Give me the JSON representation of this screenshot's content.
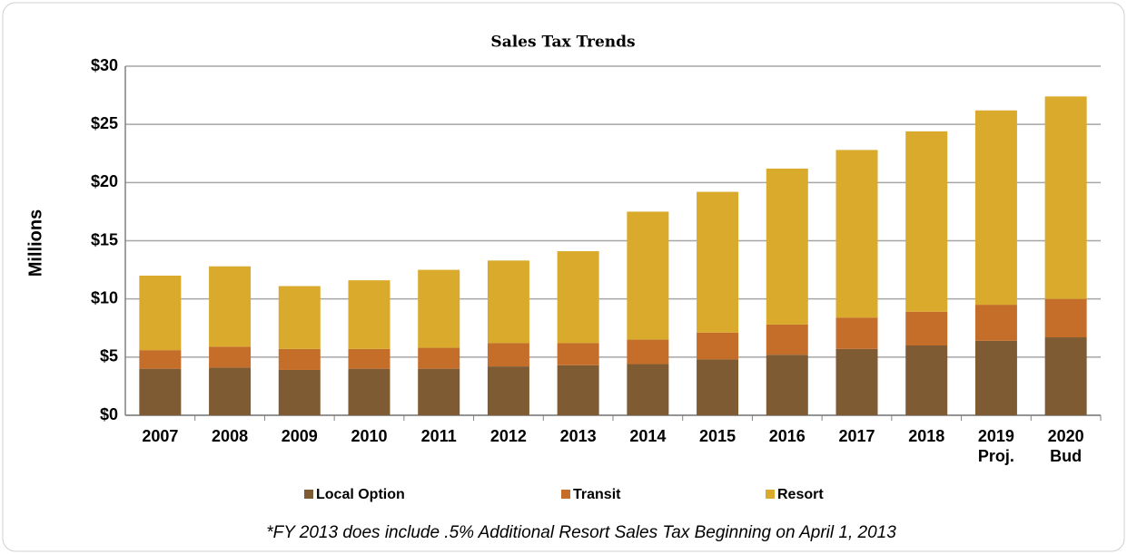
{
  "chart_data": {
    "type": "stacked_bar",
    "title": "Sales Tax Trends",
    "y_label": "Millions",
    "note": "*FY 2013 does include .5% Additional Resort  Sales Tax Beginning on April 1, 2013",
    "categories": [
      "2007",
      "2008",
      "2009",
      "2010",
      "2011",
      "2012",
      "2013",
      "2014",
      "2015",
      "2016",
      "2017",
      "2018",
      [
        "2019",
        "Proj."
      ],
      [
        "2020",
        "Bud"
      ]
    ],
    "series": [
      {
        "name": "Local Option",
        "color": "#7f5b33",
        "values": [
          4.0,
          4.1,
          3.9,
          4.0,
          4.0,
          4.2,
          4.3,
          4.4,
          4.8,
          5.2,
          5.7,
          6.0,
          6.4,
          6.7
        ]
      },
      {
        "name": "Transit",
        "color": "#c56e2a",
        "values": [
          1.6,
          1.8,
          1.8,
          1.7,
          1.8,
          2.0,
          1.9,
          2.1,
          2.3,
          2.6,
          2.7,
          2.9,
          3.1,
          3.3
        ]
      },
      {
        "name": "Resort",
        "color": "#d9aa2b",
        "values": [
          6.4,
          6.9,
          5.4,
          5.9,
          6.7,
          7.1,
          7.9,
          11.0,
          12.1,
          13.4,
          14.4,
          15.5,
          16.7,
          17.4
        ]
      }
    ],
    "ylim": [
      0,
      30
    ],
    "yticks": [
      {
        "value": 0,
        "label": "$0"
      },
      {
        "value": 5,
        "label": "$5"
      },
      {
        "value": 10,
        "label": "$10"
      },
      {
        "value": 15,
        "label": "$15"
      },
      {
        "value": 20,
        "label": "$20"
      },
      {
        "value": 25,
        "label": "$25"
      },
      {
        "value": 30,
        "label": "$30"
      }
    ],
    "grid": true,
    "legend": "bottom"
  }
}
